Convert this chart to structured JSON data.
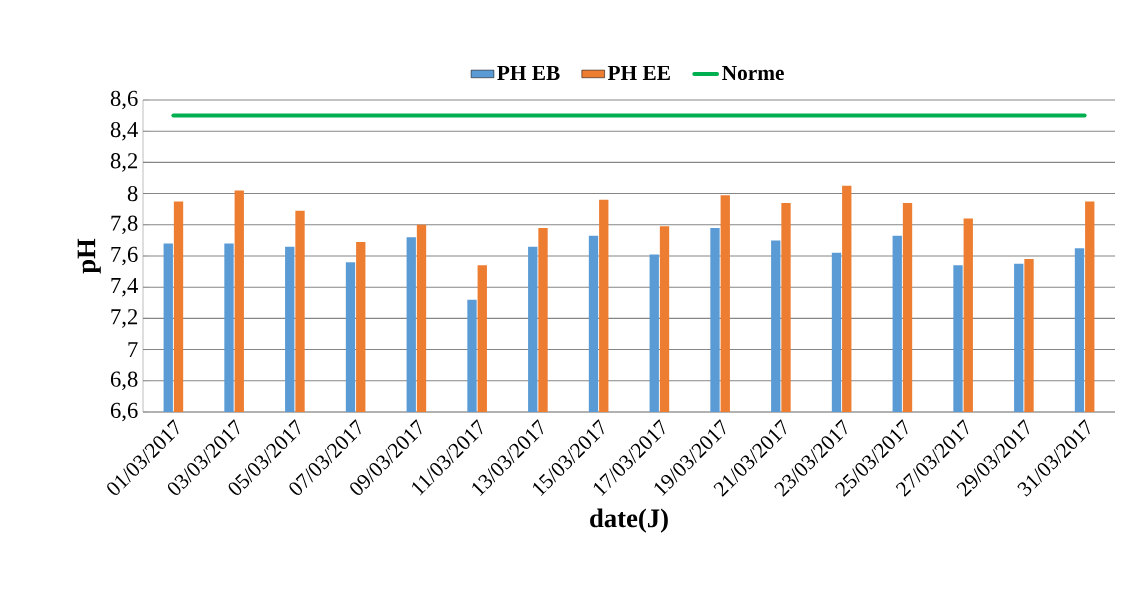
{
  "chart_data": {
    "type": "bar",
    "xlabel": "date(J)",
    "ylabel": "pH",
    "categories": [
      "01/03/2017",
      "03/03/2017",
      "05/03/2017",
      "07/03/2017",
      "09/03/2017",
      "11/03/2017",
      "13/03/2017",
      "15/03/2017",
      "17/03/2017",
      "19/03/2017",
      "21/03/2017",
      "23/03/2017",
      "25/03/2017",
      "27/03/2017",
      "29/03/2017",
      "31/03/2017"
    ],
    "series": [
      {
        "name": "PH EB",
        "color": "#5b9bd5",
        "values": [
          7.68,
          7.68,
          7.66,
          7.56,
          7.72,
          7.32,
          7.66,
          7.73,
          7.61,
          7.78,
          7.7,
          7.62,
          7.73,
          7.54,
          7.55,
          7.65
        ]
      },
      {
        "name": "PH EE",
        "color": "#ed7d31",
        "values": [
          7.95,
          8.02,
          7.89,
          7.69,
          7.8,
          7.54,
          7.78,
          7.96,
          7.79,
          7.99,
          7.94,
          8.05,
          7.94,
          7.84,
          7.58,
          7.95
        ]
      },
      {
        "name": "Norme",
        "type": "line",
        "color": "#00b050",
        "values": [
          8.5,
          8.5,
          8.5,
          8.5,
          8.5,
          8.5,
          8.5,
          8.5,
          8.5,
          8.5,
          8.5,
          8.5,
          8.5,
          8.5,
          8.5,
          8.5
        ]
      }
    ],
    "ylim": [
      6.6,
      8.6
    ],
    "yticks": [
      {
        "value": 6.6,
        "label": "6,6"
      },
      {
        "value": 6.8,
        "label": "6,8"
      },
      {
        "value": 7,
        "label": "7"
      },
      {
        "value": 7.2,
        "label": "7,2"
      },
      {
        "value": 7.4,
        "label": "7,4"
      },
      {
        "value": 7.6,
        "label": "7,6"
      },
      {
        "value": 7.8,
        "label": "7,8"
      },
      {
        "value": 8,
        "label": "8"
      },
      {
        "value": 8.2,
        "label": "8,2"
      },
      {
        "value": 8.4,
        "label": "8,4"
      },
      {
        "value": 8.6,
        "label": "8,6"
      }
    ],
    "grid": "y",
    "legend": "top"
  }
}
